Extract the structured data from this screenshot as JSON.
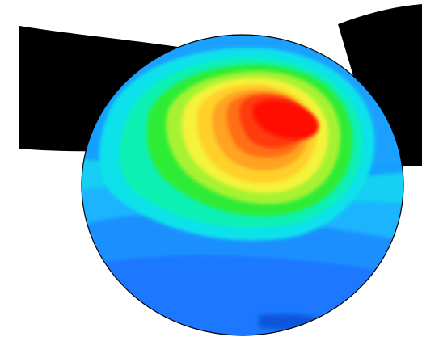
{
  "scene": {
    "background": "#ffffff",
    "model_silhouette_color": "#000000",
    "sphere_outline_color": "#000000"
  },
  "colormap": {
    "name": "rainbow contour",
    "bands": [
      "#0b4fd8",
      "#1673ff",
      "#1d92ff",
      "#19b3ff",
      "#14d0ff",
      "#11e7e7",
      "#10f2b0",
      "#18f06a",
      "#3ff03a",
      "#8af230",
      "#cdf332",
      "#f7f33a",
      "#ffd52c",
      "#ffae23",
      "#ff7f17",
      "#ff5110",
      "#ff2a08",
      "#ff0c04"
    ]
  }
}
